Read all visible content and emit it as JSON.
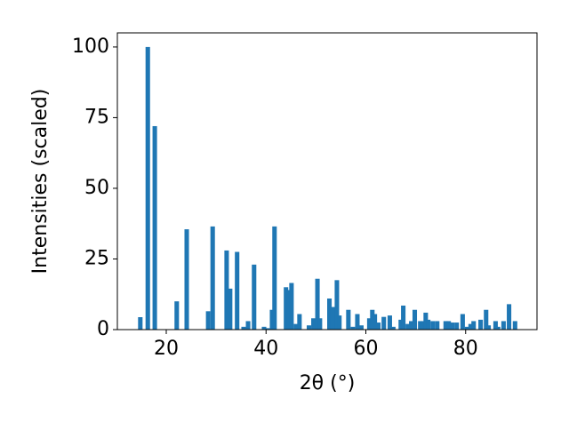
{
  "chart_data": {
    "type": "bar",
    "xlabel": "2θ (°)",
    "ylabel": "Intensities (scaled)",
    "color": "#1f77b4",
    "x": [
      14.8,
      16.3,
      17.7,
      22.1,
      24.1,
      28.4,
      29.3,
      32.1,
      32.8,
      34.2,
      35.5,
      36.4,
      37.6,
      39.6,
      40.3,
      41.2,
      41.7,
      44.0,
      44.6,
      45.1,
      46.0,
      46.7,
      48.6,
      49.5,
      50.3,
      50.8,
      52.7,
      53.4,
      54.2,
      54.7,
      56.5,
      57.4,
      58.3,
      59.1,
      60.7,
      61.3,
      61.8,
      62.5,
      63.6,
      64.8,
      65.5,
      67.0,
      67.5,
      68.4,
      69.1,
      69.8,
      70.9,
      71.4,
      72.0,
      72.5,
      73.4,
      74.3,
      76.0,
      76.6,
      77.3,
      78.2,
      79.4,
      80.3,
      81.0,
      81.6,
      83.0,
      84.1,
      84.6,
      86.0,
      86.5,
      87.6,
      88.7,
      89.9
    ],
    "values": [
      4.4,
      100,
      72,
      10,
      35.5,
      6.5,
      36.5,
      28,
      14.5,
      27.5,
      1,
      3,
      23,
      1,
      0.5,
      7,
      36.5,
      15,
      14,
      16.5,
      2,
      5.5,
      1.5,
      4,
      18,
      4,
      11,
      8,
      17.5,
      5,
      7,
      1,
      5.5,
      1.5,
      4,
      7,
      5.5,
      2.5,
      4.5,
      5,
      1,
      3.5,
      8.5,
      2,
      3,
      7,
      3,
      3,
      6,
      3.5,
      3,
      3,
      3,
      3,
      2.5,
      2.5,
      5.5,
      1,
      2,
      3,
      3.5,
      7,
      1.5,
      3,
      1,
      3,
      9,
      3
    ],
    "xlim": [
      10.2,
      94.3
    ],
    "xticks": [
      20,
      40,
      60,
      80
    ],
    "ylim": [
      0,
      105
    ],
    "yticks": [
      0,
      25,
      50,
      75,
      100
    ]
  }
}
